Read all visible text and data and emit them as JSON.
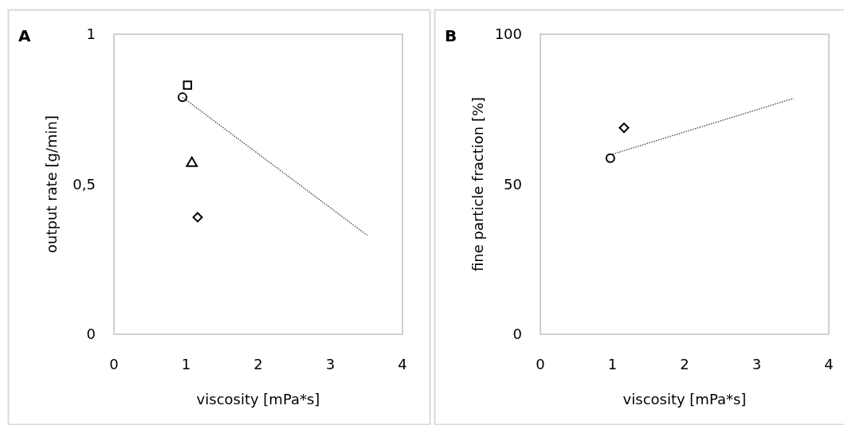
{
  "chart_data": [
    {
      "type": "scatter",
      "title": "A",
      "xlabel": "viscosity [mPa*s]",
      "ylabel": "output rate [g/min]",
      "xlim": [
        0,
        4
      ],
      "xticks": [
        0,
        1,
        2,
        3,
        4
      ],
      "ylim": [
        0,
        1
      ],
      "yticks": [
        0,
        {
          "value": 0.5,
          "label": "0,5"
        },
        1
      ],
      "grid": false,
      "series": [
        {
          "marker": "circle",
          "color": "#000000",
          "x": [
            0.95
          ],
          "values": [
            0.79
          ]
        },
        {
          "marker": "square",
          "color": "#000000",
          "x": [
            1.02
          ],
          "values": [
            0.83
          ]
        },
        {
          "marker": "triangle",
          "color": "#000000",
          "x": [
            1.08
          ],
          "values": [
            0.57
          ]
        },
        {
          "marker": "diamond",
          "color": "#000000",
          "x": [
            1.16
          ],
          "values": [
            0.39
          ]
        },
        {
          "type": "line",
          "marker": "none",
          "line_style": "dotted",
          "color": "#404040",
          "x": [
            0.95,
            3.51
          ],
          "values": [
            0.79,
            0.33
          ]
        }
      ]
    },
    {
      "type": "scatter",
      "title": "B",
      "xlabel": "viscosity [mPa*s]",
      "ylabel": "fine particle fraction [%]",
      "xlim": [
        0,
        4
      ],
      "xticks": [
        0,
        1,
        2,
        3,
        4
      ],
      "ylim": [
        0,
        100
      ],
      "yticks": [
        0,
        50,
        100
      ],
      "grid": false,
      "series": [
        {
          "marker": "circle",
          "color": "#000000",
          "x": [
            0.97
          ],
          "values": [
            58.7
          ]
        },
        {
          "marker": "diamond",
          "color": "#000000",
          "x": [
            1.16
          ],
          "values": [
            68.8
          ]
        },
        {
          "type": "line",
          "marker": "none",
          "line_style": "dotted",
          "color": "#404040",
          "x": [
            0.97,
            3.51
          ],
          "values": [
            59.8,
            78.6
          ]
        }
      ]
    }
  ]
}
